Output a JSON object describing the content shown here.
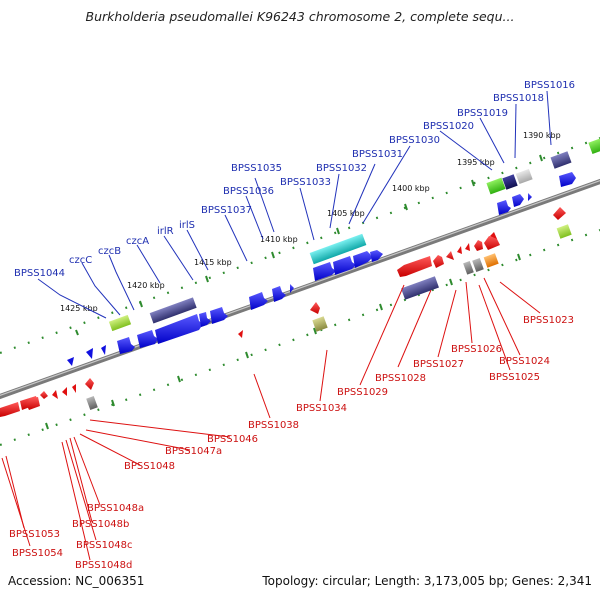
{
  "title": "Burkholderia pseudomallei K96243 chromosome 2, complete sequ...",
  "footer": {
    "accession": "Accession: NC_006351",
    "topology": "Topology: circular; Length: 3,173,005 bp; Genes: 2,341"
  },
  "colors": {
    "backbone": "#808080",
    "tick": "#2e8b2e",
    "label_top": "#1f2fb0",
    "label_bottom": "#cc1111",
    "gene_blue": "#1010e0",
    "gene_red": "#e01010",
    "gene_slate": "#4a4a8e",
    "gene_cyan": "#20c8c8",
    "gene_green": "#44cc22",
    "gene_lime": "#99dd33",
    "gene_olive": "#a8a860",
    "gene_gray": "#888888",
    "gene_orange": "#ff8c1a"
  },
  "scale_labels": [
    "1425 kbp",
    "1420 kbp",
    "1415 kbp",
    "1410 kbp",
    "1405 kbp",
    "1400 kbp",
    "1395 kbp",
    "1390 kbp"
  ],
  "top_gene_labels": [
    "BPSS1044",
    "czcC",
    "czcB",
    "czcA",
    "irlR",
    "irlS",
    "BPSS1037",
    "BPSS1036",
    "BPSS1035",
    "BPSS1033",
    "BPSS1032",
    "BPSS1031",
    "BPSS1030",
    "BPSS1020",
    "BPSS1019",
    "BPSS1018",
    "BPSS1016"
  ],
  "bottom_gene_labels": [
    "BPSS1038",
    "BPSS1034",
    "BPSS1029",
    "BPSS1028",
    "BPSS1027",
    "BPSS1026",
    "BPSS1025",
    "BPSS1024",
    "BPSS1023",
    "BPSS1046",
    "BPSS1047a",
    "BPSS1048",
    "BPSS1048a",
    "BPSS1048b",
    "BPSS1048c",
    "BPSS1048d",
    "BPSS1053",
    "BPSS1054"
  ]
}
